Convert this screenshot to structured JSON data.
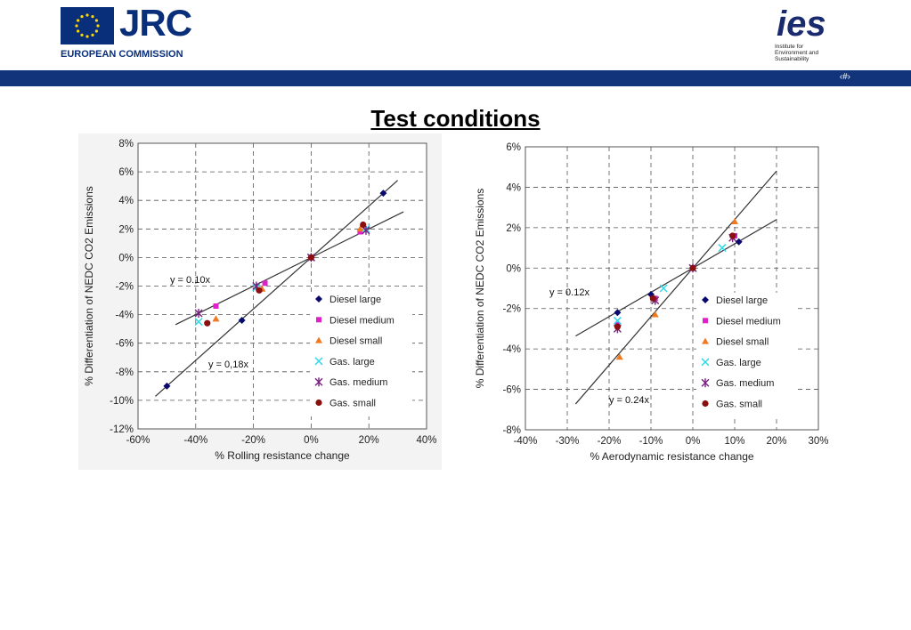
{
  "header": {
    "jrc_logo_text": "JRC",
    "ec_text": "EUROPEAN COMMISSION",
    "ies_logo_text": "ies",
    "ies_sub": [
      "Institute for",
      "Environment and",
      "Sustainability"
    ],
    "slide_number": "‹#›",
    "bar_color": "#11347b"
  },
  "page": {
    "title": "Test conditions"
  },
  "legend_items": [
    {
      "name": "Diesel large",
      "marker": "diamond",
      "color": "#0a0a6e"
    },
    {
      "name": "Diesel medium",
      "marker": "square",
      "color": "#e020c8"
    },
    {
      "name": "Diesel small",
      "marker": "triangle",
      "color": "#f07820"
    },
    {
      "name": "Gas. large",
      "marker": "x",
      "color": "#30d8e8"
    },
    {
      "name": "Gas. medium",
      "marker": "star",
      "color": "#7a2080"
    },
    {
      "name": "Gas. small",
      "marker": "circle",
      "color": "#8a1010"
    }
  ],
  "chart_data": [
    {
      "type": "scatter",
      "xlabel": "% Rolling resistance change",
      "ylabel": "% Differentiation of NEDC CO2 Emissions",
      "xlim": [
        -60,
        40
      ],
      "ylim": [
        -12,
        8
      ],
      "x_ticks": [
        -60,
        -40,
        -20,
        0,
        20,
        40
      ],
      "y_ticks": [
        -12,
        -10,
        -8,
        -6,
        -4,
        -2,
        0,
        2,
        4,
        6,
        8
      ],
      "x_tick_labels": [
        "-60%",
        "-40%",
        "-20%",
        "0%",
        "20%",
        "40%"
      ],
      "y_tick_labels": [
        "-12%",
        "-10%",
        "-8%",
        "-6%",
        "-4%",
        "-2%",
        "0%",
        "2%",
        "4%",
        "6%",
        "8%"
      ],
      "grid": true,
      "legend_position": "right",
      "fit_lines": [
        {
          "label": "y = 0.10x",
          "slope": 0.1,
          "x_range": [
            -47,
            32
          ]
        },
        {
          "label": "y = 0,18x",
          "slope": 0.18,
          "x_range": [
            -54,
            30
          ]
        }
      ],
      "series": [
        {
          "name": "Diesel large",
          "points": [
            [
              -50,
              -9.0
            ],
            [
              -24,
              -4.4
            ],
            [
              25,
              4.5
            ],
            [
              0,
              0
            ]
          ]
        },
        {
          "name": "Diesel medium",
          "points": [
            [
              -33,
              -3.4
            ],
            [
              -16,
              -1.8
            ],
            [
              17,
              1.8
            ],
            [
              0,
              0
            ]
          ]
        },
        {
          "name": "Diesel small",
          "points": [
            [
              -33,
              -4.3
            ],
            [
              -17,
              -2.2
            ],
            [
              17,
              2.0
            ],
            [
              0,
              0
            ]
          ]
        },
        {
          "name": "Gas. large",
          "points": [
            [
              -39,
              -4.5
            ],
            [
              -19,
              -2.1
            ],
            [
              19,
              2.0
            ],
            [
              0,
              0
            ]
          ]
        },
        {
          "name": "Gas. medium",
          "points": [
            [
              -39,
              -3.9
            ],
            [
              -19,
              -2.0
            ],
            [
              19,
              1.9
            ],
            [
              0,
              0
            ]
          ]
        },
        {
          "name": "Gas. small",
          "points": [
            [
              -36,
              -4.6
            ],
            [
              -18,
              -2.3
            ],
            [
              18,
              2.3
            ],
            [
              0,
              0
            ]
          ]
        }
      ]
    },
    {
      "type": "scatter",
      "xlabel": "% Aerodynamic resistance change",
      "ylabel": "% Differentiation of NEDC CO2 Emissions",
      "xlim": [
        -40,
        30
      ],
      "ylim": [
        -8,
        6
      ],
      "x_ticks": [
        -40,
        -30,
        -20,
        -10,
        0,
        10,
        20,
        30
      ],
      "y_ticks": [
        -8,
        -6,
        -4,
        -2,
        0,
        2,
        4,
        6
      ],
      "x_tick_labels": [
        "-40%",
        "-30%",
        "-20%",
        "-10%",
        "0%",
        "10%",
        "20%",
        "30%"
      ],
      "y_tick_labels": [
        "-8%",
        "-6%",
        "-4%",
        "-2%",
        "0%",
        "2%",
        "4%",
        "6%"
      ],
      "grid": true,
      "legend_position": "right",
      "fit_lines": [
        {
          "label": "y = 0.12x",
          "slope": 0.12,
          "x_range": [
            -28,
            20
          ]
        },
        {
          "label": "y = 0.24x",
          "slope": 0.24,
          "x_range": [
            -28,
            20
          ]
        }
      ],
      "series": [
        {
          "name": "Diesel large",
          "points": [
            [
              -18,
              -2.2
            ],
            [
              -10,
              -1.3
            ],
            [
              11,
              1.3
            ],
            [
              0,
              0
            ]
          ]
        },
        {
          "name": "Diesel medium",
          "points": [
            [
              -18,
              -2.8
            ],
            [
              -9,
              -1.5
            ],
            [
              10,
              1.6
            ],
            [
              0,
              0
            ]
          ]
        },
        {
          "name": "Diesel small",
          "points": [
            [
              -17.5,
              -4.4
            ],
            [
              -9,
              -2.3
            ],
            [
              10,
              2.3
            ],
            [
              0,
              0
            ]
          ]
        },
        {
          "name": "Gas. large",
          "points": [
            [
              -18,
              -2.6
            ],
            [
              -7,
              -1.0
            ],
            [
              7,
              1.0
            ],
            [
              0,
              0
            ]
          ]
        },
        {
          "name": "Gas. medium",
          "points": [
            [
              -18,
              -3.0
            ],
            [
              -9,
              -1.6
            ],
            [
              9.5,
              1.5
            ],
            [
              0,
              0
            ]
          ]
        },
        {
          "name": "Gas. small",
          "points": [
            [
              -18,
              -2.9
            ],
            [
              -9.5,
              -1.5
            ],
            [
              9.5,
              1.6
            ],
            [
              0,
              0
            ]
          ]
        }
      ]
    }
  ]
}
